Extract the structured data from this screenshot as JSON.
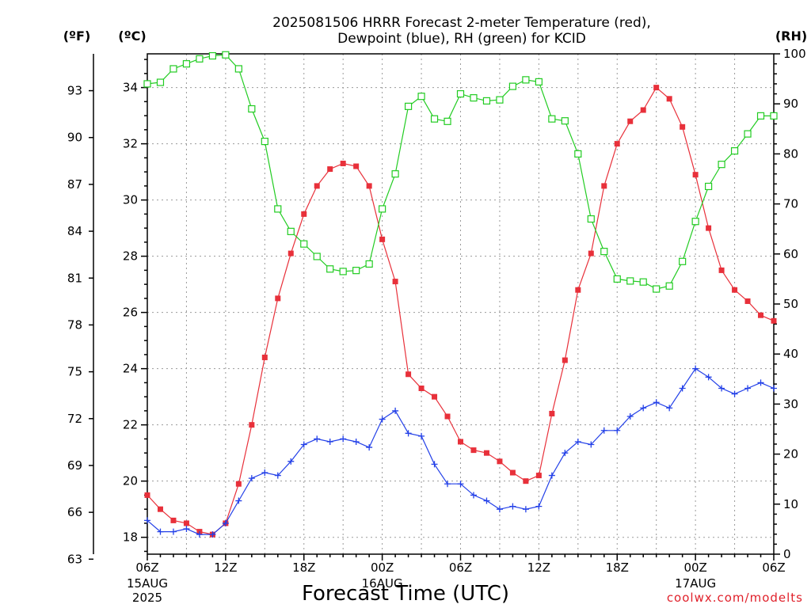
{
  "title_line1": "2025081506 HRRR Forecast 2-meter Temperature (red),",
  "title_line2": "Dewpoint (blue), RH (green) for KCID",
  "unit_labels": {
    "fahrenheit": "(ºF)",
    "celsius": "(ºC)",
    "rh": "(RH)"
  },
  "xlabel": "Forecast Time (UTC)",
  "credit": "coolwx.com/modelts",
  "chart_data": {
    "type": "line",
    "title": "2025081506 HRRR Forecast 2-meter Temperature (red), Dewpoint (blue), RH (green) for KCID",
    "xlabel": "Forecast Time (UTC)",
    "x_unit": "forecast hour from 2025-08-15 06Z",
    "x": [
      0,
      1,
      2,
      3,
      4,
      5,
      6,
      7,
      8,
      9,
      10,
      11,
      12,
      13,
      14,
      15,
      16,
      17,
      18,
      19,
      20,
      21,
      22,
      23,
      24,
      25,
      26,
      27,
      28,
      29,
      30,
      31,
      32,
      33,
      34,
      35,
      36,
      37,
      38,
      39,
      40,
      41,
      42,
      43,
      44,
      45,
      46,
      47,
      48
    ],
    "xlim": [
      0,
      48
    ],
    "x_ticks": [
      {
        "hour": 0,
        "label": "06Z",
        "sub": [
          "15AUG",
          "2025"
        ]
      },
      {
        "hour": 6,
        "label": "12Z",
        "sub": []
      },
      {
        "hour": 12,
        "label": "18Z",
        "sub": []
      },
      {
        "hour": 18,
        "label": "00Z",
        "sub": [
          "16AUG"
        ]
      },
      {
        "hour": 24,
        "label": "06Z",
        "sub": []
      },
      {
        "hour": 30,
        "label": "12Z",
        "sub": []
      },
      {
        "hour": 36,
        "label": "18Z",
        "sub": []
      },
      {
        "hour": 42,
        "label": "00Z",
        "sub": [
          "17AUG"
        ]
      },
      {
        "hour": 48,
        "label": "06Z",
        "sub": []
      }
    ],
    "left_axis_celsius": {
      "ylim": [
        17.4,
        35.2
      ],
      "ticks": [
        18,
        20,
        22,
        24,
        26,
        28,
        30,
        32,
        34
      ]
    },
    "left_axis_fahrenheit": {
      "ticks": [
        63,
        66,
        69,
        72,
        75,
        78,
        81,
        84,
        87,
        90,
        93
      ]
    },
    "right_axis_rh": {
      "ylim": [
        0,
        100
      ],
      "ticks": [
        0,
        10,
        20,
        30,
        40,
        50,
        60,
        70,
        80,
        90,
        100
      ]
    },
    "grid": true,
    "series": [
      {
        "name": "Temperature (red)",
        "axis": "celsius",
        "color": "#e8303a",
        "marker": "filled-square",
        "values": [
          19.5,
          19.0,
          18.6,
          18.5,
          18.2,
          18.1,
          18.5,
          19.9,
          22.0,
          24.4,
          26.5,
          28.1,
          29.5,
          30.5,
          31.1,
          31.3,
          31.2,
          30.5,
          28.6,
          27.1,
          23.8,
          23.3,
          23.0,
          22.3,
          21.4,
          21.1,
          21.0,
          20.7,
          20.3,
          20.0,
          20.2,
          22.4,
          24.3,
          26.8,
          28.1,
          30.5,
          32.0,
          32.8,
          33.2,
          34.0,
          33.6,
          32.6,
          30.9,
          29.0,
          27.5,
          26.8,
          26.4,
          25.9,
          25.7
        ]
      },
      {
        "name": "Dewpoint (blue)",
        "axis": "celsius",
        "color": "#2340e8",
        "marker": "plus",
        "values": [
          18.6,
          18.2,
          18.2,
          18.3,
          18.1,
          18.1,
          18.5,
          19.3,
          20.1,
          20.3,
          20.2,
          20.7,
          21.3,
          21.5,
          21.4,
          21.5,
          21.4,
          21.2,
          22.2,
          22.5,
          21.7,
          21.6,
          20.6,
          19.9,
          19.9,
          19.5,
          19.3,
          19.0,
          19.1,
          19.0,
          19.1,
          20.2,
          21.0,
          21.4,
          21.3,
          21.8,
          21.8,
          22.3,
          22.6,
          22.8,
          22.6,
          23.3,
          24.0,
          23.7,
          23.3,
          23.1,
          23.3,
          23.5,
          23.3
        ]
      },
      {
        "name": "RH (green)",
        "axis": "rh",
        "color": "#22cc22",
        "marker": "open-square",
        "values": [
          94.0,
          94.3,
          97.0,
          98.0,
          99.0,
          99.6,
          99.8,
          97.0,
          89.0,
          82.5,
          69.0,
          64.5,
          62.0,
          59.5,
          57.0,
          56.5,
          56.7,
          58.0,
          69.0,
          76.0,
          89.5,
          91.5,
          87.0,
          86.5,
          92.0,
          91.2,
          90.6,
          90.8,
          93.5,
          94.8,
          94.4,
          87.0,
          86.6,
          80.0,
          67.0,
          60.5,
          55.0,
          54.6,
          54.4,
          53.0,
          53.6,
          58.5,
          66.5,
          73.5,
          77.9,
          80.6,
          84.0,
          87.6,
          87.6
        ]
      }
    ]
  }
}
